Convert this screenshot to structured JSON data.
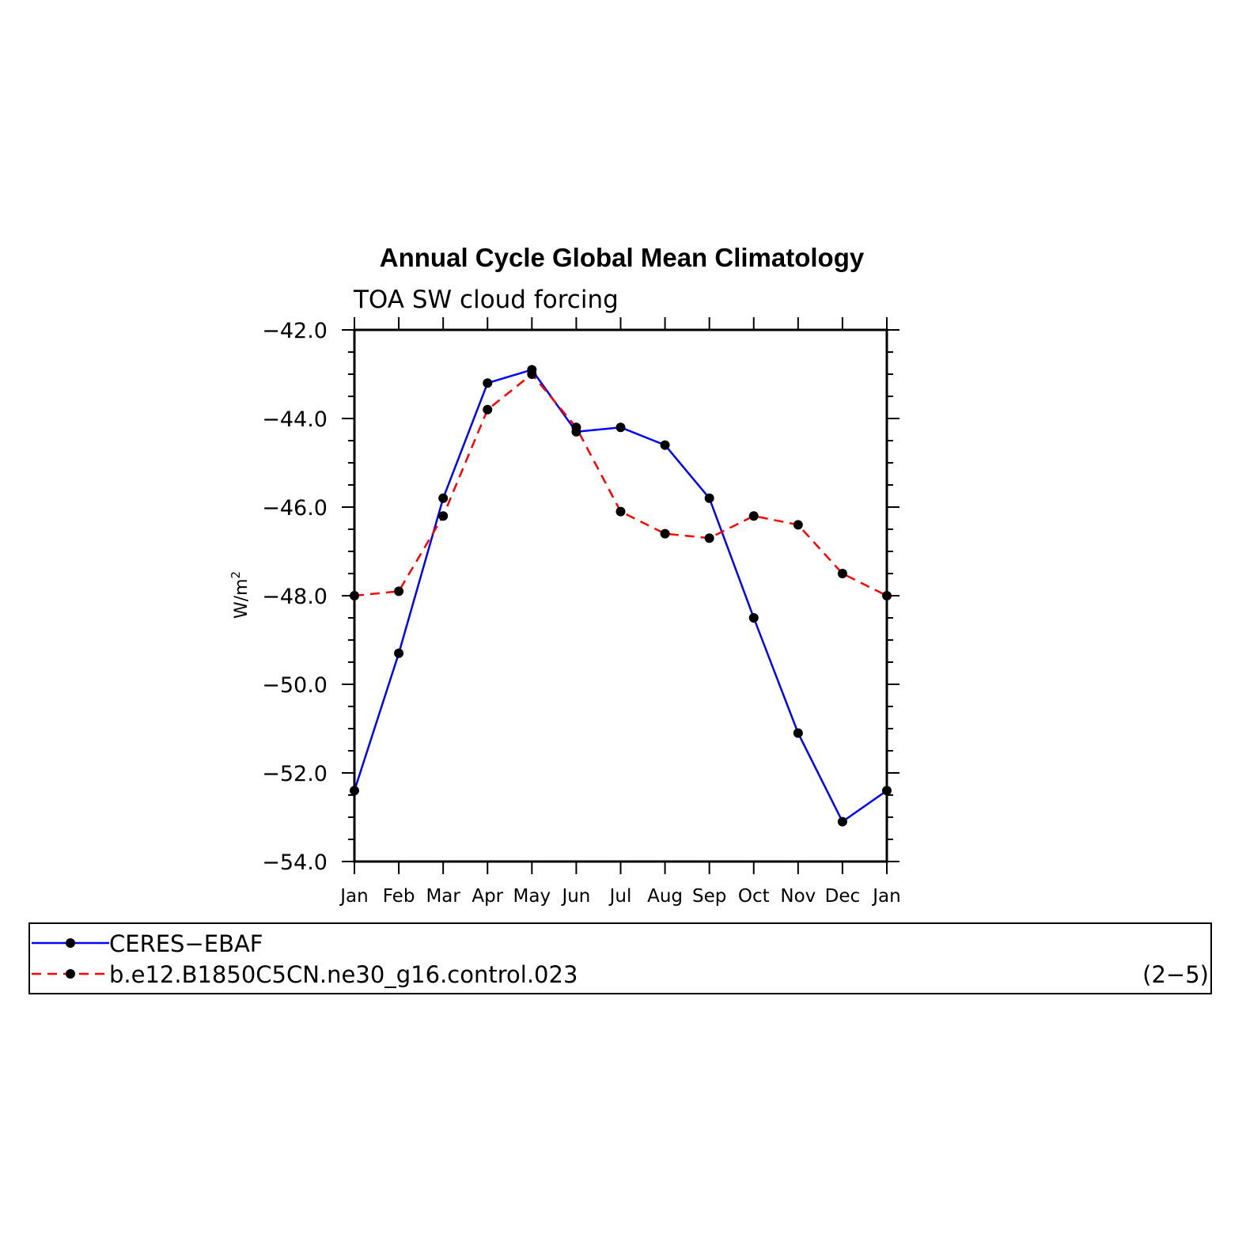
{
  "chart_data": {
    "type": "line",
    "title": "Annual Cycle Global Mean Climatology",
    "subtitle": "TOA SW cloud forcing",
    "ylabel_base": "W/m",
    "ylabel_sup": "2",
    "xlabel": "",
    "categories": [
      "Jan",
      "Feb",
      "Mar",
      "Apr",
      "May",
      "Jun",
      "Jul",
      "Aug",
      "Sep",
      "Oct",
      "Nov",
      "Dec",
      "Jan"
    ],
    "ylim": [
      -54.0,
      -42.0
    ],
    "yticks": [
      -42.0,
      -44.0,
      -46.0,
      -48.0,
      -50.0,
      -52.0,
      -54.0
    ],
    "ytick_labels": [
      "−42.0",
      "−44.0",
      "−46.0",
      "−48.0",
      "−50.0",
      "−52.0",
      "−54.0"
    ],
    "grid": false,
    "series": [
      {
        "name": "CERES−EBAF",
        "color": "#0000ff",
        "dash": "solid",
        "marker": "circle",
        "values": [
          -52.4,
          -49.3,
          -45.8,
          -43.2,
          -42.9,
          -44.3,
          -44.2,
          -44.6,
          -45.8,
          -48.5,
          -51.1,
          -53.1,
          -52.4
        ]
      },
      {
        "name": "b.e12.B1850C5CN.ne30_g16.control.023",
        "color": "#ff0000",
        "dash": "dashed",
        "marker": "circle",
        "values": [
          -48.0,
          -47.9,
          -46.2,
          -43.8,
          -43.0,
          -44.2,
          -46.1,
          -46.6,
          -46.7,
          -46.2,
          -46.4,
          -47.5,
          -48.0
        ]
      }
    ],
    "legend_position": "bottom",
    "panel_label": "(2−5)"
  }
}
